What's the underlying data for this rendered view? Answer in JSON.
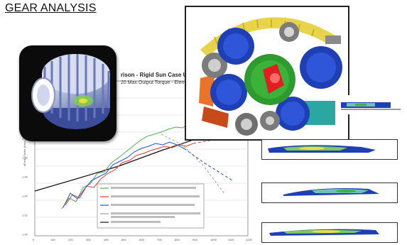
{
  "header": {
    "title": "GEAR ANALYSIS"
  },
  "chart": {
    "title": "rison - Rigid Sun Case U",
    "subtitle": "20 Max Output Torque - Elem",
    "x_ticks": [
      "0",
      "100",
      "200",
      "300",
      "400",
      "500",
      "600",
      "700",
      "800",
      "900",
      "1000",
      "1100",
      "1200"
    ],
    "y_ticks": [
      "1.00",
      "1.02",
      "1.04",
      "1.06",
      "1.08",
      "1.10",
      "1.12",
      "1.14",
      "1.16"
    ]
  },
  "colors": {
    "gear_gray": "#b8c0d8",
    "planet_blue": "#1f3fb5",
    "ring_yellow": "#e8d44a",
    "sun_green": "#3bb33b",
    "highlight_red": "#e02020"
  },
  "icons": {
    "gear": "gear-icon",
    "planetary_assembly": "planetary-gear-assembly-icon",
    "contact_pattern": "contact-pattern-icon"
  }
}
